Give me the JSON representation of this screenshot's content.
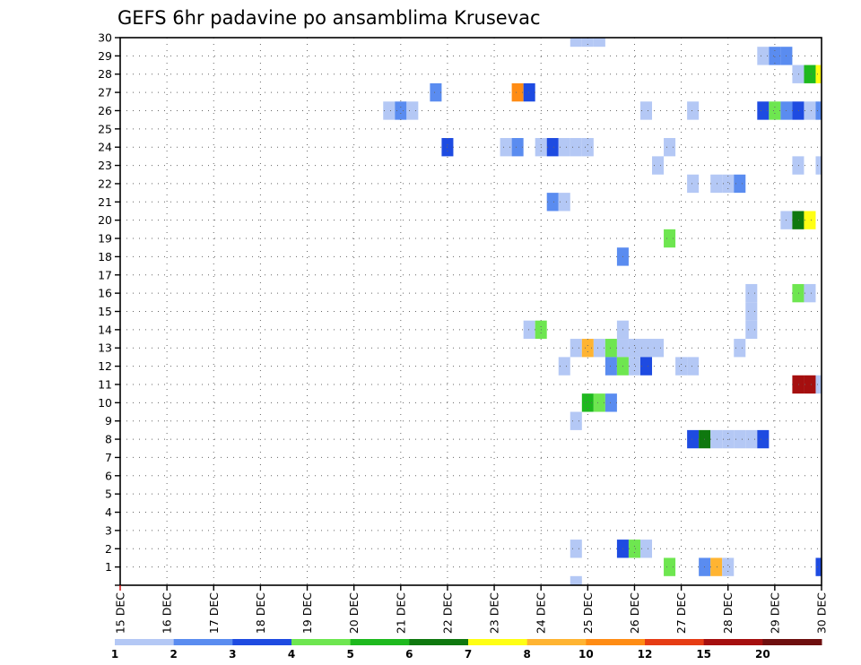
{
  "chart_data": {
    "type": "heatmap",
    "title": "GEFS 6hr padavine po ansamblima Krusevac",
    "xlabel": "",
    "ylabel": "",
    "x_tick_labels": [
      "15 DEC",
      "16 DEC",
      "17 DEC",
      "18 DEC",
      "19 DEC",
      "20 DEC",
      "21 DEC",
      "22 DEC",
      "23 DEC",
      "24 DEC",
      "25 DEC",
      "26 DEC",
      "27 DEC",
      "28 DEC",
      "29 DEC",
      "30 DEC"
    ],
    "y_tick_labels": [
      "1",
      "2",
      "3",
      "4",
      "5",
      "6",
      "7",
      "8",
      "9",
      "10",
      "11",
      "12",
      "13",
      "14",
      "15",
      "16",
      "17",
      "18",
      "19",
      "20",
      "21",
      "22",
      "23",
      "24",
      "25",
      "26",
      "27",
      "28",
      "29",
      "30"
    ],
    "xlim_hours": [
      0,
      360
    ],
    "step_hours": 6,
    "ylim_members": [
      0,
      30
    ],
    "grid": true,
    "legend": {
      "placement": "bottom",
      "thresholds": [
        "1",
        "2",
        "3",
        "4",
        "5",
        "6",
        "7",
        "8",
        "10",
        "12",
        "15",
        "20"
      ],
      "colors": [
        "#b4c8f5",
        "#5a8cf0",
        "#1e4be1",
        "#6ee650",
        "#1eb91e",
        "#0f780f",
        "#ffff14",
        "#ffb432",
        "#ff8c14",
        "#e63c14",
        "#a50f0f",
        "#6e0f0f"
      ]
    },
    "cells": [
      {
        "member": 30,
        "h": [
          [
            234,
            1
          ],
          [
            240,
            1
          ],
          [
            246,
            1
          ]
        ]
      },
      {
        "member": 29,
        "h": [
          [
            330,
            1
          ],
          [
            336,
            2
          ],
          [
            342,
            2
          ]
        ]
      },
      {
        "member": 28,
        "h": [
          [
            348,
            1
          ],
          [
            354,
            5
          ],
          [
            360,
            7
          ]
        ]
      },
      {
        "member": 27,
        "h": [
          [
            162,
            2
          ],
          [
            204,
            10
          ],
          [
            210,
            3
          ]
        ]
      },
      {
        "member": 26,
        "h": [
          [
            138,
            1
          ],
          [
            144,
            2
          ],
          [
            150,
            1
          ],
          [
            270,
            1
          ],
          [
            294,
            1
          ],
          [
            330,
            3
          ],
          [
            336,
            4
          ],
          [
            342,
            2
          ],
          [
            348,
            3
          ],
          [
            354,
            1
          ],
          [
            360,
            2
          ]
        ]
      },
      {
        "member": 24,
        "h": [
          [
            168,
            3
          ],
          [
            198,
            1
          ],
          [
            204,
            2
          ],
          [
            216,
            1
          ],
          [
            222,
            3
          ],
          [
            228,
            1
          ],
          [
            234,
            1
          ],
          [
            240,
            1
          ],
          [
            282,
            1
          ]
        ]
      },
      {
        "member": 23,
        "h": [
          [
            276,
            1
          ],
          [
            348,
            1
          ],
          [
            360,
            1
          ]
        ]
      },
      {
        "member": 22,
        "h": [
          [
            294,
            1
          ],
          [
            306,
            1
          ],
          [
            312,
            1
          ],
          [
            318,
            2
          ]
        ]
      },
      {
        "member": 21,
        "h": [
          [
            222,
            2
          ],
          [
            228,
            1
          ]
        ]
      },
      {
        "member": 20,
        "h": [
          [
            342,
            1
          ],
          [
            348,
            6
          ],
          [
            354,
            7
          ]
        ]
      },
      {
        "member": 19,
        "h": [
          [
            282,
            4
          ]
        ]
      },
      {
        "member": 18,
        "h": [
          [
            258,
            2
          ]
        ]
      },
      {
        "member": 16,
        "h": [
          [
            324,
            1
          ],
          [
            348,
            4
          ],
          [
            354,
            1
          ]
        ]
      },
      {
        "member": 15,
        "h": [
          [
            324,
            1
          ]
        ]
      },
      {
        "member": 14,
        "h": [
          [
            210,
            1
          ],
          [
            216,
            4
          ],
          [
            258,
            1
          ],
          [
            324,
            1
          ]
        ]
      },
      {
        "member": 13,
        "h": [
          [
            234,
            1
          ],
          [
            240,
            8
          ],
          [
            246,
            1
          ],
          [
            252,
            4
          ],
          [
            258,
            1
          ],
          [
            264,
            1
          ],
          [
            270,
            1
          ],
          [
            276,
            1
          ],
          [
            318,
            1
          ]
        ]
      },
      {
        "member": 12,
        "h": [
          [
            228,
            1
          ],
          [
            252,
            2
          ],
          [
            258,
            4
          ],
          [
            264,
            1
          ],
          [
            270,
            3
          ],
          [
            288,
            1
          ],
          [
            294,
            1
          ]
        ]
      },
      {
        "member": 11,
        "h": [
          [
            348,
            15
          ],
          [
            354,
            15
          ],
          [
            360,
            1
          ]
        ]
      },
      {
        "member": 10,
        "h": [
          [
            240,
            5
          ],
          [
            246,
            4
          ],
          [
            252,
            2
          ]
        ]
      },
      {
        "member": 9,
        "h": [
          [
            234,
            1
          ]
        ]
      },
      {
        "member": 8,
        "h": [
          [
            294,
            3
          ],
          [
            300,
            6
          ],
          [
            306,
            1
          ],
          [
            312,
            1
          ],
          [
            318,
            1
          ],
          [
            324,
            1
          ],
          [
            330,
            3
          ]
        ]
      },
      {
        "member": 2,
        "h": [
          [
            234,
            1
          ],
          [
            258,
            3
          ],
          [
            264,
            4
          ],
          [
            270,
            1
          ]
        ]
      },
      {
        "member": 1,
        "h": [
          [
            282,
            4
          ],
          [
            300,
            2
          ],
          [
            306,
            8
          ],
          [
            312,
            1
          ],
          [
            360,
            3
          ]
        ]
      },
      {
        "member": 0,
        "h": [
          [
            234,
            1
          ]
        ]
      }
    ]
  }
}
